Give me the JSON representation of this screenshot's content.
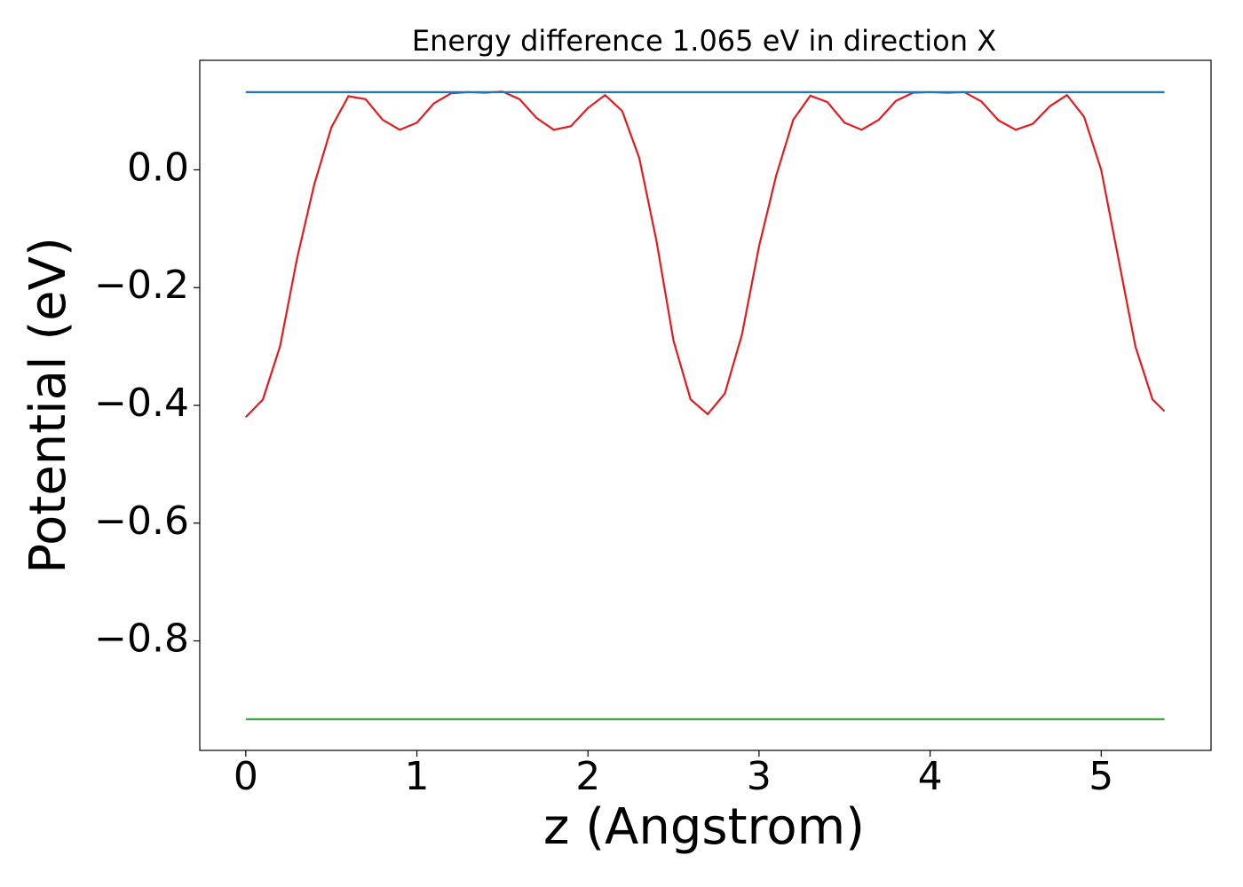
{
  "chart_data": {
    "type": "line",
    "title": "Energy difference 1.065 eV in direction X",
    "x_label": "z (Angstrom)",
    "y_label": "Potential (eV)",
    "xlim": [
      -0.269,
      5.642
    ],
    "ylim": [
      -0.986,
      0.186
    ],
    "xticks": [
      0,
      1,
      2,
      3,
      4,
      5
    ],
    "yticks": [
      {
        "value": -0.8,
        "label": "−0.8"
      },
      {
        "value": -0.6,
        "label": "−0.6"
      },
      {
        "value": -0.4,
        "label": "−0.4"
      },
      {
        "value": -0.2,
        "label": "−0.2"
      },
      {
        "value": 0,
        "label": "0.0"
      }
    ],
    "series": [
      {
        "color": "#e41a1c",
        "x": [
          0,
          0.1,
          0.2,
          0.3,
          0.4,
          0.5,
          0.6,
          0.7,
          0.8,
          0.9,
          1.0,
          1.1,
          1.2,
          1.3,
          1.4,
          1.5,
          1.6,
          1.7,
          1.8,
          1.9,
          2.0,
          2.1,
          2.2,
          2.3,
          2.4,
          2.5,
          2.6,
          2.7,
          2.8,
          2.9,
          3.0,
          3.1,
          3.2,
          3.3,
          3.4,
          3.5,
          3.6,
          3.7,
          3.8,
          3.9,
          4.0,
          4.1,
          4.2,
          4.3,
          4.4,
          4.5,
          4.6,
          4.7,
          4.8,
          4.9,
          5.0,
          5.1,
          5.2,
          5.3,
          5.37
        ],
        "values": [
          -0.42,
          -0.39,
          -0.3,
          -0.15,
          -0.025,
          0.072,
          0.125,
          0.12,
          0.085,
          0.068,
          0.08,
          0.113,
          0.13,
          0.132,
          0.131,
          0.133,
          0.12,
          0.088,
          0.068,
          0.074,
          0.105,
          0.127,
          0.1,
          0.02,
          -0.12,
          -0.29,
          -0.39,
          -0.415,
          -0.38,
          -0.28,
          -0.13,
          -0.01,
          0.085,
          0.126,
          0.115,
          0.08,
          0.068,
          0.085,
          0.117,
          0.131,
          0.132,
          0.131,
          0.132,
          0.116,
          0.084,
          0.068,
          0.078,
          0.108,
          0.127,
          0.09,
          0.0,
          -0.15,
          -0.3,
          -0.39,
          -0.41
        ]
      },
      {
        "color": "#1f77b4",
        "x": [
          0,
          5.37
        ],
        "values": [
          0.132,
          0.132
        ]
      },
      {
        "color": "#2ca02c",
        "x": [
          0,
          5.37
        ],
        "values": [
          -0.933,
          -0.933
        ]
      }
    ]
  }
}
